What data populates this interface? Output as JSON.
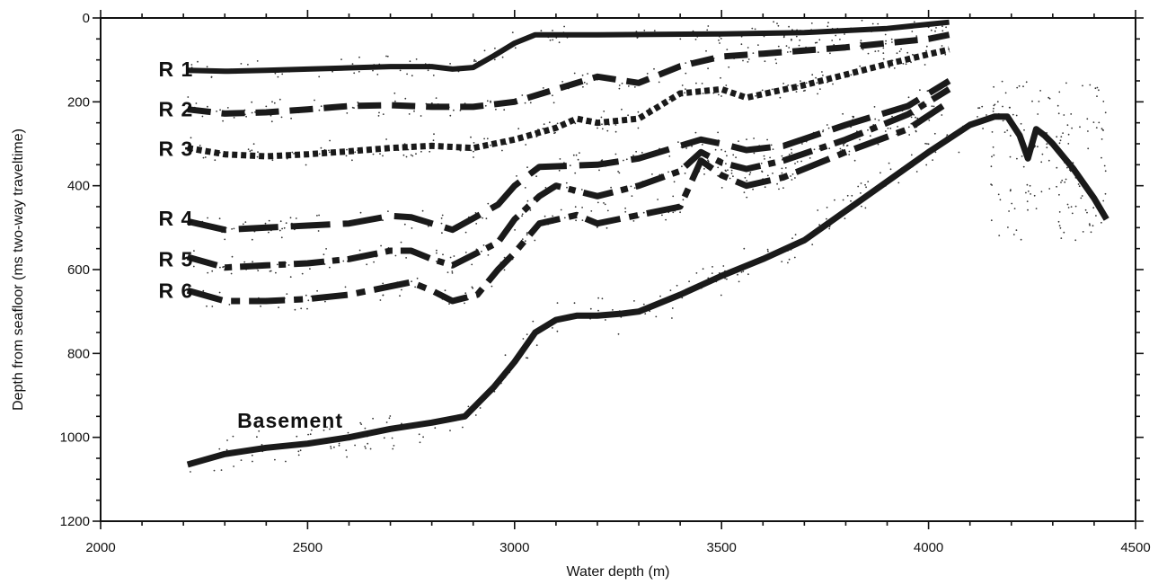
{
  "chart_data": {
    "type": "line",
    "title": "",
    "xlabel": "Water depth (m)",
    "ylabel": "Depth from seafloor (ms two-way traveltime)",
    "xlim": [
      2000,
      4500
    ],
    "ylim": [
      0,
      1200
    ],
    "y_inverted": true,
    "x_ticks": [
      2000,
      2500,
      3000,
      3500,
      4000,
      4500
    ],
    "y_ticks": [
      0,
      200,
      400,
      600,
      800,
      1000,
      1200
    ],
    "grid": false,
    "legend": "none",
    "series": [
      {
        "name": "R 1",
        "style": "solid",
        "label_anchor": [
          2140,
          122
        ],
        "x": [
          2210,
          2300,
          2400,
          2500,
          2600,
          2700,
          2800,
          2850,
          2900,
          2950,
          3000,
          3050,
          3200,
          3500,
          3700,
          3900,
          4000,
          4050
        ],
        "y": [
          125,
          127,
          125,
          122,
          119,
          116,
          116,
          122,
          118,
          90,
          60,
          40,
          40,
          38,
          35,
          25,
          15,
          10
        ]
      },
      {
        "name": "R 2",
        "style": "dashed",
        "label_anchor": [
          2140,
          217
        ],
        "x": [
          2210,
          2300,
          2400,
          2500,
          2600,
          2700,
          2800,
          2900,
          3000,
          3100,
          3200,
          3300,
          3400,
          3500,
          3600,
          3800,
          4000,
          4050
        ],
        "y": [
          218,
          228,
          225,
          218,
          210,
          208,
          212,
          212,
          200,
          170,
          140,
          155,
          115,
          92,
          85,
          70,
          50,
          40
        ]
      },
      {
        "name": "R 3",
        "style": "dotted",
        "label_anchor": [
          2140,
          312
        ],
        "x": [
          2210,
          2300,
          2400,
          2500,
          2600,
          2700,
          2800,
          2900,
          3000,
          3100,
          3150,
          3200,
          3300,
          3400,
          3500,
          3560,
          3700,
          3900,
          4050
        ],
        "y": [
          310,
          325,
          330,
          325,
          318,
          310,
          305,
          310,
          290,
          262,
          240,
          250,
          240,
          180,
          170,
          190,
          160,
          110,
          75
        ]
      },
      {
        "name": "R 4",
        "style": "long-dash",
        "label_anchor": [
          2140,
          478
        ],
        "x": [
          2210,
          2300,
          2400,
          2500,
          2600,
          2700,
          2750,
          2800,
          2850,
          2960,
          3000,
          3060,
          3200,
          3300,
          3400,
          3450,
          3500,
          3560,
          3650,
          3800,
          3950,
          4050
        ],
        "y": [
          485,
          505,
          500,
          495,
          490,
          472,
          475,
          490,
          505,
          445,
          400,
          355,
          350,
          335,
          305,
          290,
          300,
          315,
          305,
          255,
          210,
          150
        ]
      },
      {
        "name": "R 5",
        "style": "dash-dot",
        "label_anchor": [
          2140,
          575
        ],
        "x": [
          2210,
          2300,
          2400,
          2500,
          2600,
          2700,
          2750,
          2800,
          2850,
          2960,
          3000,
          3060,
          3100,
          3200,
          3300,
          3400,
          3450,
          3500,
          3560,
          3650,
          3800,
          3950,
          4050
        ],
        "y": [
          570,
          595,
          590,
          585,
          575,
          555,
          555,
          575,
          590,
          535,
          480,
          425,
          400,
          425,
          400,
          365,
          320,
          345,
          360,
          340,
          290,
          230,
          170
        ]
      },
      {
        "name": "R 6",
        "style": "long-dash-dot",
        "label_anchor": [
          2140,
          650
        ],
        "x": [
          2210,
          2300,
          2400,
          2500,
          2600,
          2700,
          2750,
          2800,
          2850,
          2910,
          2960,
          3000,
          3060,
          3150,
          3200,
          3300,
          3400,
          3450,
          3500,
          3560,
          3650,
          3800,
          3950,
          4050
        ],
        "y": [
          650,
          675,
          675,
          670,
          660,
          640,
          630,
          650,
          675,
          660,
          600,
          560,
          490,
          470,
          490,
          470,
          450,
          340,
          375,
          400,
          380,
          320,
          265,
          200
        ]
      },
      {
        "name": "Basement",
        "style": "solid-bold",
        "label_anchor": [
          2330,
          960
        ],
        "x": [
          2210,
          2300,
          2400,
          2500,
          2600,
          2700,
          2800,
          2880,
          2950,
          3000,
          3050,
          3100,
          3150,
          3200,
          3260,
          3300,
          3400,
          3500,
          3600,
          3700,
          3800,
          3900,
          4000,
          4100,
          4160,
          4190,
          4220,
          4240,
          4260,
          4280,
          4300,
          4350,
          4400,
          4430
        ],
        "y": [
          1065,
          1040,
          1025,
          1015,
          1000,
          980,
          965,
          950,
          880,
          820,
          750,
          720,
          710,
          710,
          705,
          700,
          660,
          615,
          575,
          530,
          460,
          390,
          320,
          255,
          235,
          235,
          280,
          335,
          265,
          280,
          300,
          360,
          430,
          480
        ]
      }
    ]
  }
}
